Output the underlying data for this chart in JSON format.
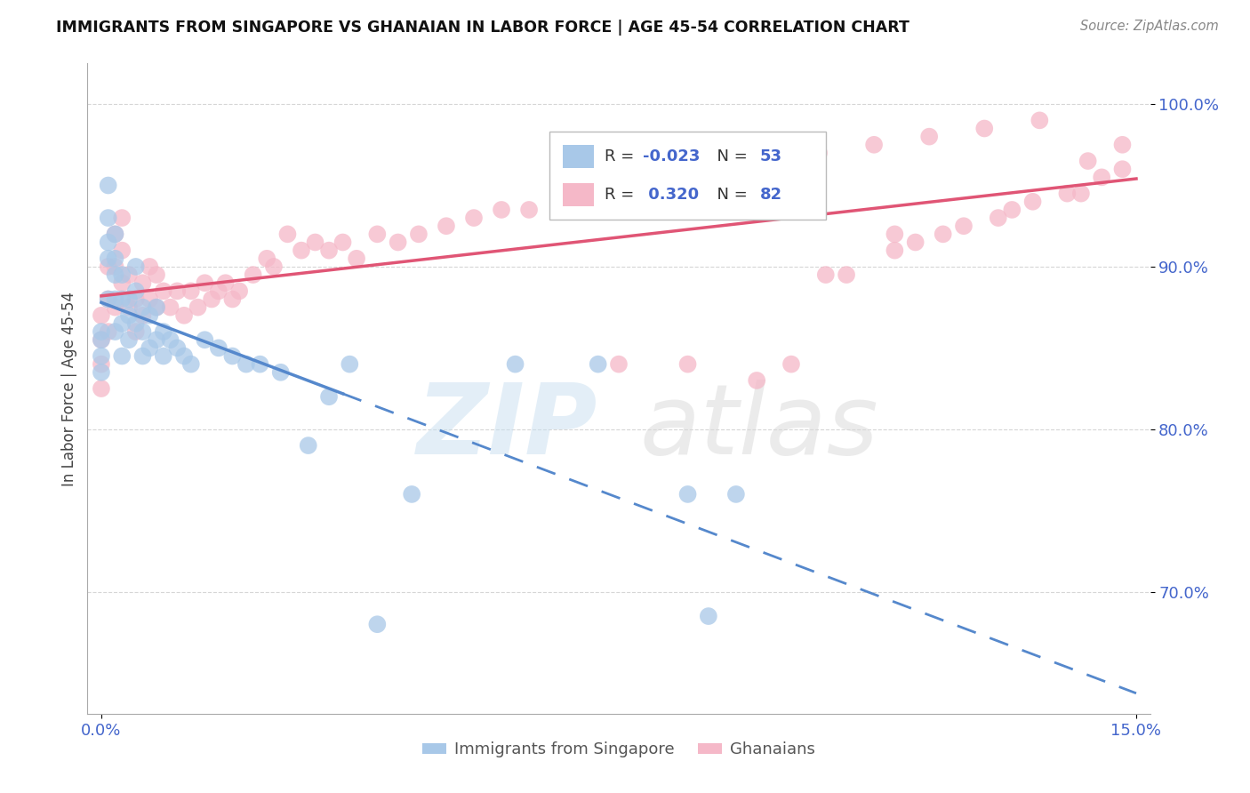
{
  "title": "IMMIGRANTS FROM SINGAPORE VS GHANAIAN IN LABOR FORCE | AGE 45-54 CORRELATION CHART",
  "source": "Source: ZipAtlas.com",
  "ylabel": "In Labor Force | Age 45-54",
  "xlim": [
    -0.002,
    0.152
  ],
  "ylim": [
    0.625,
    1.025
  ],
  "xticks": [
    0.0,
    0.15
  ],
  "xticklabels": [
    "0.0%",
    "15.0%"
  ],
  "yticks": [
    0.7,
    0.8,
    0.9,
    1.0
  ],
  "yticklabels": [
    "70.0%",
    "80.0%",
    "90.0%",
    "100.0%"
  ],
  "color_singapore": "#a8c8e8",
  "color_ghana": "#f5b8c8",
  "color_line_singapore": "#5588cc",
  "color_line_ghana": "#e05575",
  "color_blue": "#4466cc",
  "background": "#ffffff",
  "grid_color": "#cccccc",
  "singapore_x": [
    0.0,
    0.0,
    0.0,
    0.0,
    0.001,
    0.001,
    0.001,
    0.001,
    0.001,
    0.002,
    0.002,
    0.002,
    0.002,
    0.002,
    0.003,
    0.003,
    0.003,
    0.003,
    0.004,
    0.004,
    0.004,
    0.005,
    0.005,
    0.005,
    0.006,
    0.006,
    0.006,
    0.007,
    0.007,
    0.008,
    0.008,
    0.009,
    0.009,
    0.01,
    0.011,
    0.012,
    0.013,
    0.015,
    0.017,
    0.019,
    0.021,
    0.023,
    0.026,
    0.03,
    0.033,
    0.036,
    0.04,
    0.045,
    0.06,
    0.072,
    0.085,
    0.088,
    0.092
  ],
  "singapore_y": [
    0.86,
    0.855,
    0.845,
    0.835,
    0.95,
    0.93,
    0.915,
    0.905,
    0.88,
    0.92,
    0.905,
    0.895,
    0.88,
    0.86,
    0.895,
    0.88,
    0.865,
    0.845,
    0.88,
    0.87,
    0.855,
    0.9,
    0.885,
    0.865,
    0.875,
    0.86,
    0.845,
    0.87,
    0.85,
    0.875,
    0.855,
    0.86,
    0.845,
    0.855,
    0.85,
    0.845,
    0.84,
    0.855,
    0.85,
    0.845,
    0.84,
    0.84,
    0.835,
    0.79,
    0.82,
    0.84,
    0.68,
    0.76,
    0.84,
    0.84,
    0.76,
    0.685,
    0.76
  ],
  "ghana_x": [
    0.0,
    0.0,
    0.0,
    0.0,
    0.001,
    0.001,
    0.001,
    0.002,
    0.002,
    0.002,
    0.003,
    0.003,
    0.003,
    0.004,
    0.004,
    0.005,
    0.005,
    0.006,
    0.006,
    0.007,
    0.007,
    0.008,
    0.008,
    0.009,
    0.01,
    0.011,
    0.012,
    0.013,
    0.014,
    0.015,
    0.016,
    0.017,
    0.018,
    0.019,
    0.02,
    0.022,
    0.024,
    0.025,
    0.027,
    0.029,
    0.031,
    0.033,
    0.035,
    0.037,
    0.04,
    0.043,
    0.046,
    0.05,
    0.054,
    0.058,
    0.062,
    0.067,
    0.072,
    0.078,
    0.084,
    0.09,
    0.097,
    0.104,
    0.112,
    0.12,
    0.128,
    0.136,
    0.143,
    0.148,
    0.1,
    0.108,
    0.115,
    0.122,
    0.13,
    0.118,
    0.125,
    0.132,
    0.14,
    0.145,
    0.135,
    0.142,
    0.148,
    0.095,
    0.105,
    0.115,
    0.085,
    0.075
  ],
  "ghana_y": [
    0.87,
    0.855,
    0.84,
    0.825,
    0.9,
    0.88,
    0.86,
    0.92,
    0.9,
    0.875,
    0.93,
    0.91,
    0.89,
    0.895,
    0.875,
    0.88,
    0.86,
    0.89,
    0.87,
    0.9,
    0.88,
    0.895,
    0.875,
    0.885,
    0.875,
    0.885,
    0.87,
    0.885,
    0.875,
    0.89,
    0.88,
    0.885,
    0.89,
    0.88,
    0.885,
    0.895,
    0.905,
    0.9,
    0.92,
    0.91,
    0.915,
    0.91,
    0.915,
    0.905,
    0.92,
    0.915,
    0.92,
    0.925,
    0.93,
    0.935,
    0.935,
    0.945,
    0.95,
    0.955,
    0.96,
    0.96,
    0.965,
    0.97,
    0.975,
    0.98,
    0.985,
    0.99,
    0.965,
    0.975,
    0.84,
    0.895,
    0.91,
    0.92,
    0.93,
    0.915,
    0.925,
    0.935,
    0.945,
    0.955,
    0.94,
    0.945,
    0.96,
    0.83,
    0.895,
    0.92,
    0.84,
    0.84
  ]
}
